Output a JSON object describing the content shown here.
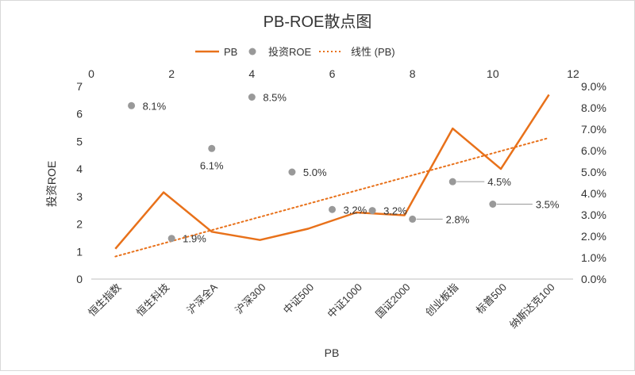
{
  "chart_data": {
    "type": "line+scatter",
    "title": "PB-ROE散点图",
    "xlabel": "PB",
    "ylabel": "投资ROE",
    "categories": [
      "恒生指数",
      "恒生科技",
      "沪深全A",
      "沪深300",
      "中证500",
      "中证1000",
      "国证2000",
      "创业板指",
      "标普500",
      "纳斯达克100"
    ],
    "left_axis": {
      "min": 0,
      "max": 7,
      "step": 1,
      "ticks": [
        "0",
        "1",
        "2",
        "3",
        "4",
        "5",
        "6",
        "7"
      ]
    },
    "right_axis": {
      "min": 0,
      "max": 9,
      "step": 1,
      "ticks": [
        "0.0%",
        "1.0%",
        "2.0%",
        "3.0%",
        "4.0%",
        "5.0%",
        "6.0%",
        "7.0%",
        "8.0%",
        "9.0%"
      ]
    },
    "top_axis": {
      "min": 0,
      "max": 12,
      "step": 2,
      "ticks": [
        "0",
        "2",
        "4",
        "6",
        "8",
        "10",
        "12"
      ]
    },
    "line_series": {
      "name": "PB",
      "color": "#E8711A",
      "values": [
        1.1,
        3.15,
        1.72,
        1.42,
        1.83,
        2.42,
        2.32,
        5.47,
        4.0,
        6.7
      ]
    },
    "scatter_series": {
      "name": "投资ROE",
      "color": "#999999",
      "points": [
        {
          "x": 1.0,
          "y": 8.1,
          "label": "8.1%"
        },
        {
          "x": 2.0,
          "y": 1.9,
          "label": "1.9%"
        },
        {
          "x": 3.0,
          "y": 6.1,
          "label": "6.1%"
        },
        {
          "x": 4.0,
          "y": 8.5,
          "label": "8.5%"
        },
        {
          "x": 5.0,
          "y": 5.0,
          "label": "5.0%"
        },
        {
          "x": 6.0,
          "y": 3.25,
          "label": "3.2%"
        },
        {
          "x": 7.0,
          "y": 3.2,
          "label": "3.2%"
        },
        {
          "x": 8.0,
          "y": 2.8,
          "label": "2.8%"
        },
        {
          "x": 9.0,
          "y": 4.55,
          "label": "4.5%"
        },
        {
          "x": 10.0,
          "y": 3.5,
          "label": "3.5%"
        }
      ]
    },
    "trend_series": {
      "name": "线性 (PB)",
      "color": "#E8711A",
      "style": "dotted",
      "start": 0.82,
      "end": 5.13
    },
    "legend_position": "top",
    "grid": false
  }
}
